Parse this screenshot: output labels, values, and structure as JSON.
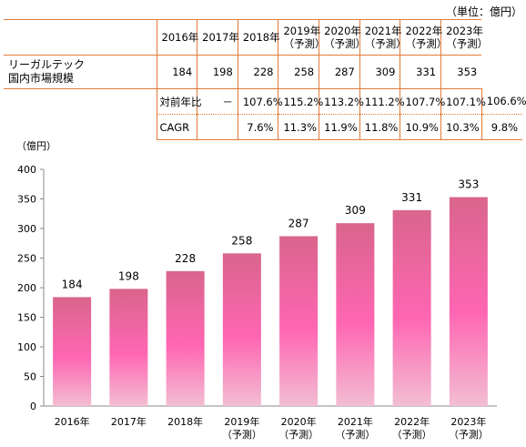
{
  "unit_note": "（単位：億円）",
  "table": {
    "years": [
      "2016年",
      "2017年",
      "2018年",
      "2019年\n（予測）",
      "2020年\n（予測）",
      "2021年\n（予測）",
      "2022年\n（予測）",
      "2023年\n（予測）"
    ],
    "market_label_1": "リーガルテック",
    "market_label_2": "国内市場規模",
    "market": [
      "184",
      "198",
      "228",
      "258",
      "287",
      "309",
      "331",
      "353"
    ],
    "yoy_label": "対前年比",
    "yoy": [
      "－",
      "107.6%",
      "115.2%",
      "113.2%",
      "111.2%",
      "107.7%",
      "107.1%",
      "106.6%"
    ],
    "cagr_label": "CAGR",
    "cagr": [
      "",
      "7.6%",
      "11.3%",
      "11.9%",
      "11.8%",
      "10.9%",
      "10.3%",
      "9.8%"
    ]
  },
  "chart_data": {
    "type": "bar",
    "categories": [
      "2016年",
      "2017年",
      "2018年",
      "2019年\n（予測）",
      "2020年\n（予測）",
      "2021年\n（予測）",
      "2022年\n（予測）",
      "2023年\n（予測）"
    ],
    "values": [
      184,
      198,
      228,
      258,
      287,
      309,
      331,
      353
    ],
    "ylabel": "（億円）",
    "ylim": [
      0,
      400
    ],
    "yticks": [
      0,
      50,
      100,
      150,
      200,
      250,
      300,
      350,
      400
    ],
    "grid": false,
    "legend": "none",
    "colors": {
      "bar_top": "#d9658c",
      "bar_mid": "#ff66b3",
      "bar_bottom": "#f2bed2",
      "axis": "#888888"
    }
  }
}
